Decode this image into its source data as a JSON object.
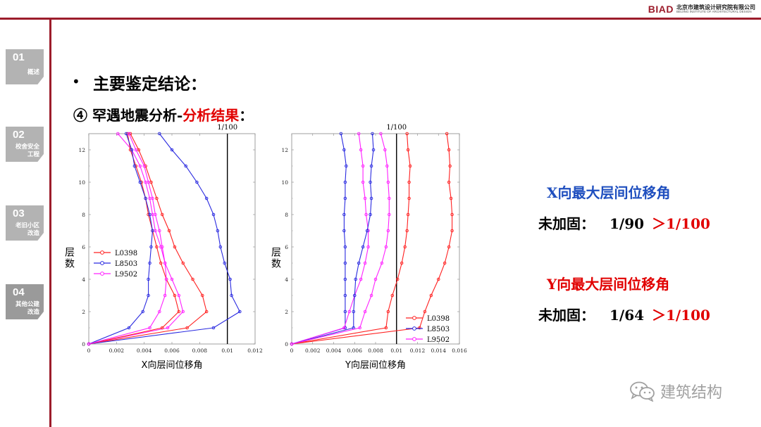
{
  "brand": {
    "logo": "BIAD",
    "cn": "北京市建筑设计研究院有限公司",
    "en": "BEIJING INSTITUTE OF ARCHITECTURAL DESIGN"
  },
  "sidebar": {
    "items": [
      {
        "num": "01",
        "label": "概述"
      },
      {
        "num": "02",
        "label": "校舍安全\n工程"
      },
      {
        "num": "03",
        "label": "老旧小区\n改造"
      },
      {
        "num": "04",
        "label": "其他公建\n改造"
      }
    ]
  },
  "main": {
    "bullet": "•",
    "heading": "主要鉴定结论：",
    "sub_prefix": "④ 罕遇地震分析-",
    "sub_red": "分析结果",
    "sub_suffix": "："
  },
  "notes": {
    "x_title": "X向最大层间位移角",
    "x_label": "未加固：",
    "x_value": "1/90",
    "x_compare": "＞1/100",
    "y_title": "Y向最大层间位移角",
    "y_label": "未加固：",
    "y_value": "1/64",
    "y_compare": "＞1/100",
    "x_color": "#1f4fbf",
    "y_color": "#e10000"
  },
  "watermark": {
    "text": "建筑结构",
    "icon": "wechat-icon"
  },
  "chart_data": [
    {
      "type": "line",
      "xlabel": "X向层间位移角",
      "ylabel": "层数",
      "xlim": [
        0,
        0.012
      ],
      "ylim": [
        0,
        13
      ],
      "xticks": [
        "0",
        "0.002",
        "0.004",
        "0.006",
        "0.008",
        "0.01",
        "0.012"
      ],
      "yticks": [
        "0",
        "2",
        "4",
        "6",
        "8",
        "10",
        "12"
      ],
      "limit_line": {
        "x": 0.01,
        "label": "1/100"
      },
      "legend_position": "middle-left",
      "series": [
        {
          "name": "L0398",
          "color": "#ff2020",
          "x": [
            0,
            0.0071,
            0.0085,
            0.0082,
            0.0075,
            0.0068,
            0.0062,
            0.0058,
            0.0053,
            0.0049,
            0.0045,
            0.0041,
            0.0036,
            0.003
          ],
          "y": [
            0,
            1,
            2,
            3,
            4,
            5,
            6,
            7,
            8,
            9,
            10,
            11,
            12,
            13
          ]
        },
        {
          "name": "L8503",
          "color": "#2a2ae0",
          "x": [
            0,
            0.009,
            0.0109,
            0.0103,
            0.0102,
            0.0098,
            0.0095,
            0.0093,
            0.009,
            0.0085,
            0.0078,
            0.007,
            0.006,
            0.0051
          ],
          "y": [
            0,
            1,
            2,
            3,
            4,
            5,
            6,
            7,
            8,
            9,
            10,
            11,
            12,
            13
          ]
        },
        {
          "name": "L9502",
          "color": "#ff20ff",
          "x": [
            0,
            0.0057,
            0.0068,
            0.0065,
            0.006,
            0.0055,
            0.0052,
            0.0048,
            0.0046,
            0.0044,
            0.0041,
            0.0037,
            0.0031,
            0.0021
          ],
          "y": [
            0,
            1,
            2,
            3,
            4,
            5,
            6,
            7,
            8,
            9,
            10,
            11,
            12,
            13
          ]
        },
        {
          "name": "",
          "color": "#ff2020",
          "x": [
            0,
            0.0053,
            0.0065,
            0.0062,
            0.0056,
            0.0052,
            0.0049,
            0.0046,
            0.0043,
            0.0041,
            0.0038,
            0.0034,
            0.003,
            0.0028
          ],
          "y": [
            0,
            1,
            2,
            3,
            4,
            5,
            6,
            7,
            8,
            9,
            10,
            11,
            12,
            13
          ]
        },
        {
          "name": "",
          "color": "#2a2ae0",
          "x": [
            0,
            0.0029,
            0.0039,
            0.0043,
            0.0043,
            0.0044,
            0.0045,
            0.0046,
            0.0044,
            0.0041,
            0.0037,
            0.0033,
            0.0031,
            0.0027
          ],
          "y": [
            0,
            1,
            2,
            3,
            4,
            5,
            6,
            7,
            8,
            9,
            10,
            11,
            12,
            13
          ]
        },
        {
          "name": "",
          "color": "#ff20ff",
          "x": [
            0,
            0.0044,
            0.0051,
            0.0055,
            0.0056,
            0.0055,
            0.0053,
            0.0051,
            0.0048,
            0.0046,
            0.0043,
            0.004,
            0.0034,
            0.0029
          ],
          "y": [
            0,
            1,
            2,
            3,
            4,
            5,
            6,
            7,
            8,
            9,
            10,
            11,
            12,
            13
          ]
        }
      ]
    },
    {
      "type": "line",
      "xlabel": "Y向层间位移角",
      "ylabel": "层数",
      "xlim": [
        0,
        0.016
      ],
      "ylim": [
        0,
        13
      ],
      "xticks": [
        "0",
        "0.002",
        "0.004",
        "0.006",
        "0.008",
        "0.01",
        "0.012",
        "0.014",
        "0.016"
      ],
      "yticks": [
        "0",
        "2",
        "4",
        "6",
        "8",
        "10",
        "12"
      ],
      "limit_line": {
        "x": 0.01,
        "label": "1/100"
      },
      "legend_position": "bottom-right",
      "series": [
        {
          "name": "L0398",
          "color": "#ff2020",
          "x": [
            0,
            0.0122,
            0.0127,
            0.0133,
            0.014,
            0.0146,
            0.015,
            0.0153,
            0.0153,
            0.0152,
            0.015,
            0.0151,
            0.015,
            0.0148
          ],
          "y": [
            0,
            1,
            2,
            3,
            4,
            5,
            6,
            7,
            8,
            9,
            10,
            11,
            12,
            13
          ]
        },
        {
          "name": "L8503",
          "color": "#2a2ae0",
          "x": [
            0,
            0.0051,
            0.0051,
            0.0051,
            0.0051,
            0.0051,
            0.0051,
            0.005,
            0.005,
            0.0051,
            0.0051,
            0.0052,
            0.005,
            0.0047
          ],
          "y": [
            0,
            1,
            2,
            3,
            4,
            5,
            6,
            7,
            8,
            9,
            10,
            11,
            12,
            13
          ]
        },
        {
          "name": "L9502",
          "color": "#ff20ff",
          "x": [
            0,
            0.005,
            0.0055,
            0.006,
            0.0066,
            0.007,
            0.0073,
            0.0073,
            0.0071,
            0.007,
            0.0068,
            0.0068,
            0.0066,
            0.0064
          ],
          "y": [
            0,
            1,
            2,
            3,
            4,
            5,
            6,
            7,
            8,
            9,
            10,
            11,
            12,
            13
          ]
        },
        {
          "name": "",
          "color": "#ff2020",
          "x": [
            0,
            0.009,
            0.0092,
            0.0096,
            0.0101,
            0.0105,
            0.0108,
            0.011,
            0.0111,
            0.0112,
            0.0112,
            0.0113,
            0.0111,
            0.011
          ],
          "y": [
            0,
            1,
            2,
            3,
            4,
            5,
            6,
            7,
            8,
            9,
            10,
            11,
            12,
            13
          ]
        },
        {
          "name": "",
          "color": "#2a2ae0",
          "x": [
            0,
            0.0059,
            0.0059,
            0.006,
            0.0061,
            0.0064,
            0.0068,
            0.0072,
            0.0075,
            0.0076,
            0.0075,
            0.0076,
            0.0078,
            0.0077
          ],
          "y": [
            0,
            1,
            2,
            3,
            4,
            5,
            6,
            7,
            8,
            9,
            10,
            11,
            12,
            13
          ]
        },
        {
          "name": "",
          "color": "#ff20ff",
          "x": [
            0,
            0.0065,
            0.007,
            0.0076,
            0.008,
            0.0086,
            0.009,
            0.0092,
            0.0093,
            0.0093,
            0.0092,
            0.0091,
            0.0089,
            0.0085
          ],
          "y": [
            0,
            1,
            2,
            3,
            4,
            5,
            6,
            7,
            8,
            9,
            10,
            11,
            12,
            13
          ]
        }
      ]
    }
  ]
}
